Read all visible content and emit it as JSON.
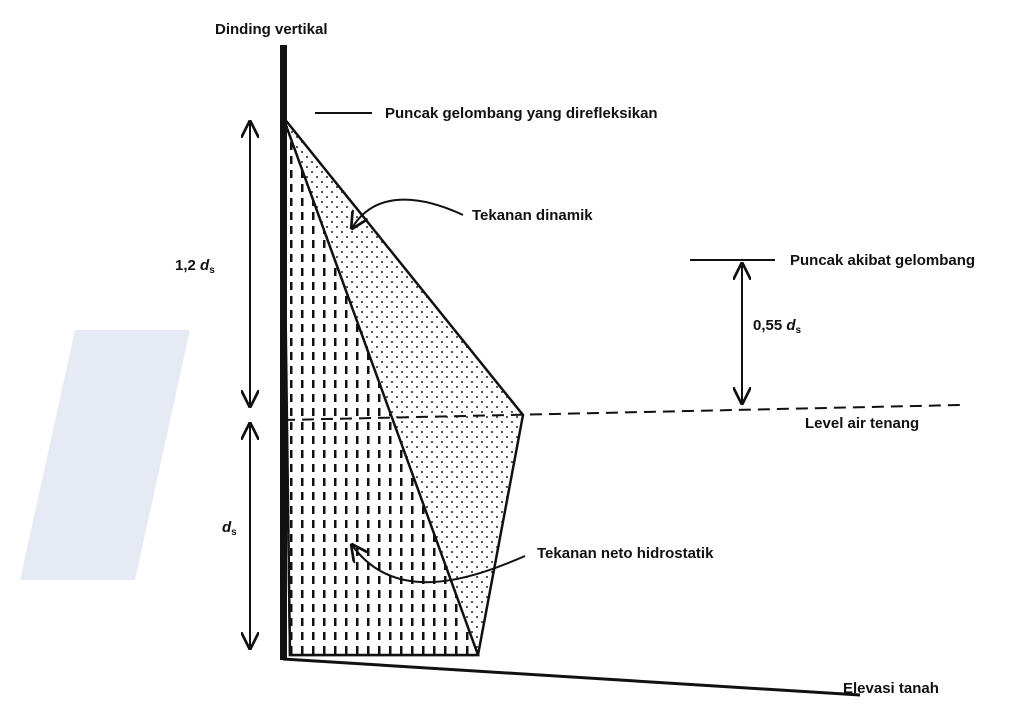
{
  "labels": {
    "wall": "Dinding vertikal",
    "reflected_crest": "Puncak gelombang yang direfleksikan",
    "dynamic_pressure": "Tekanan dinamik",
    "wave_crest": "Puncak akibat gelombang",
    "still_water": "Level air tenang",
    "hydrostatic": "Tekanan neto hidrostatik",
    "ground": "Elevasi tanah"
  },
  "dimensions": {
    "upper": {
      "prefix": "1,2",
      "symbol": "d",
      "subscript": "s"
    },
    "lower": {
      "symbol": "d",
      "subscript": "s"
    },
    "crest": {
      "prefix": "0,55",
      "symbol": "d",
      "subscript": "s"
    }
  }
}
